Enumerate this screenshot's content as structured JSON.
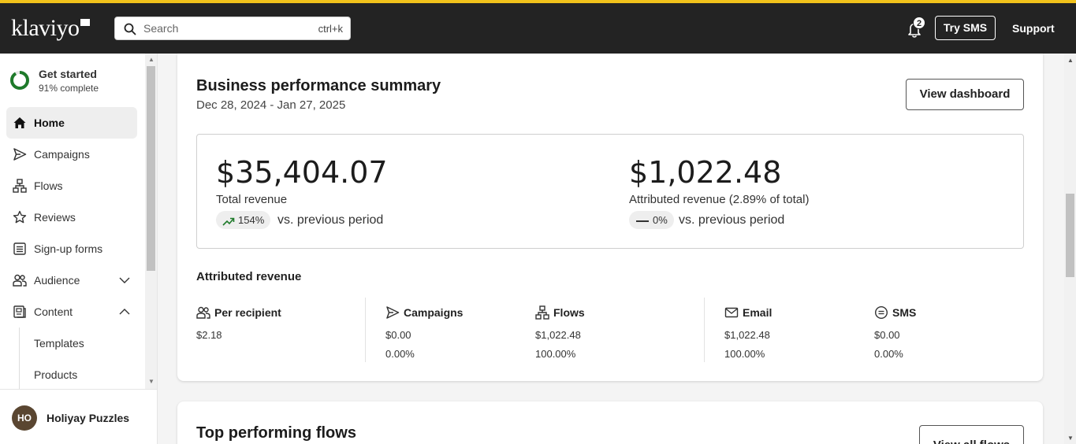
{
  "app": {
    "logo_text": "klaviyo",
    "accent_color": "#f1c21b"
  },
  "header": {
    "search_placeholder": "Search",
    "search_shortcut": "ctrl+k",
    "notification_count": "2",
    "try_sms_label": "Try SMS",
    "support_label": "Support"
  },
  "sidebar": {
    "get_started": {
      "title": "Get started",
      "progress_text": "91% complete",
      "progress_fraction": 0.91
    },
    "items": [
      {
        "label": "Home",
        "icon": "home-icon",
        "active": true
      },
      {
        "label": "Campaigns",
        "icon": "send-icon"
      },
      {
        "label": "Flows",
        "icon": "flows-icon"
      },
      {
        "label": "Reviews",
        "icon": "star-icon"
      },
      {
        "label": "Sign-up forms",
        "icon": "form-icon"
      },
      {
        "label": "Audience",
        "icon": "audience-icon",
        "expandable": true,
        "expanded": false
      },
      {
        "label": "Content",
        "icon": "content-icon",
        "expandable": true,
        "expanded": true
      }
    ],
    "sub_items": [
      {
        "label": "Templates"
      },
      {
        "label": "Products"
      }
    ],
    "user": {
      "initials": "HO",
      "name": "Holiyay Puzzles"
    }
  },
  "summary": {
    "title": "Business performance summary",
    "date_range": "Dec 28, 2024 - Jan 27, 2025",
    "view_dashboard_label": "View dashboard",
    "total_revenue": {
      "value": "$35,404.07",
      "label": "Total revenue",
      "change": "154%",
      "vs_text": "vs. previous period"
    },
    "attributed_revenue": {
      "value": "$1,022.48",
      "label": "Attributed revenue (2.89% of total)",
      "change": "0%",
      "vs_text": "vs. previous period"
    },
    "attributed_section_title": "Attributed revenue",
    "columns": [
      {
        "label": "Per recipient",
        "icon": "people-icon",
        "value": "$2.18",
        "percent": ""
      },
      {
        "label": "Campaigns",
        "icon": "send-icon",
        "value": "$0.00",
        "percent": "0.00%"
      },
      {
        "label": "Flows",
        "icon": "flows-icon",
        "value": "$1,022.48",
        "percent": "100.00%"
      },
      {
        "label": "Email",
        "icon": "mail-icon",
        "value": "$1,022.48",
        "percent": "100.00%"
      },
      {
        "label": "SMS",
        "icon": "sms-icon",
        "value": "$0.00",
        "percent": "0.00%"
      }
    ]
  },
  "top_flows": {
    "title": "Top performing flows",
    "view_all_label": "View all flows"
  }
}
